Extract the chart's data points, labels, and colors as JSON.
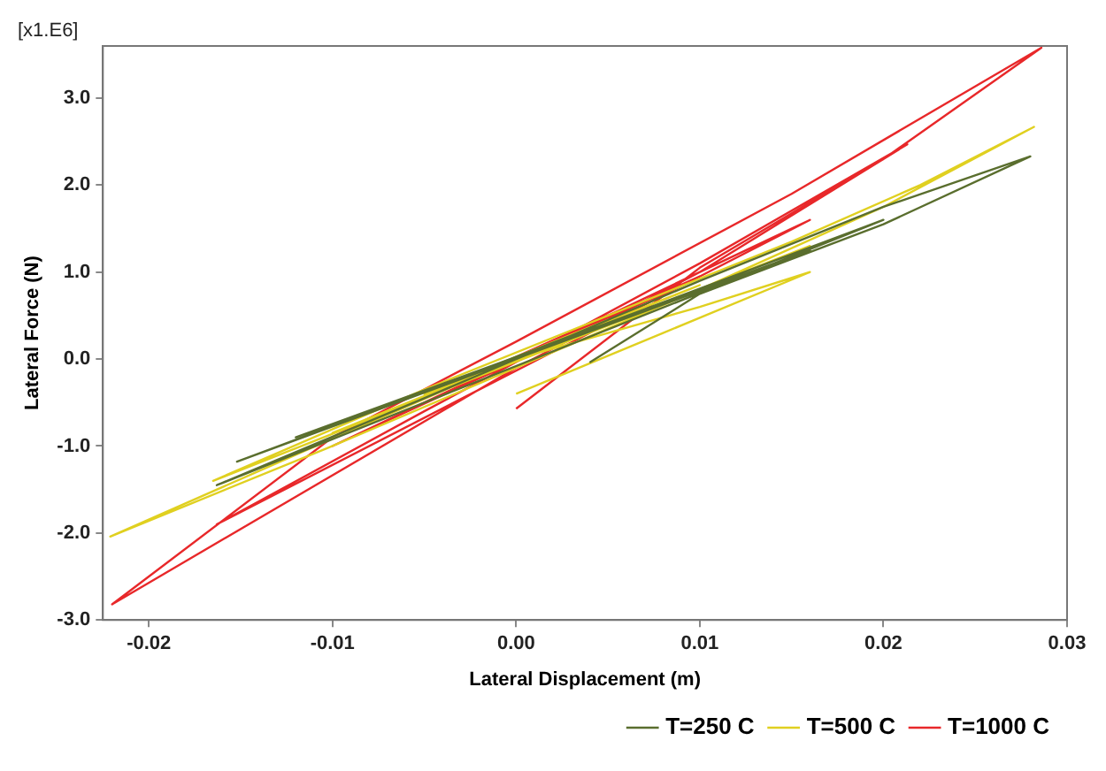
{
  "chart_data": {
    "type": "line",
    "xlabel": "Lateral Displacement (m)",
    "ylabel": "Lateral Force (N)",
    "annotations": [
      "[x1.E6]"
    ],
    "xlim": [
      -0.0225,
      0.03
    ],
    "xticks": [
      {
        "value": -0.02,
        "label": "-0.02"
      },
      {
        "value": -0.01,
        "label": "-0.01"
      },
      {
        "value": 0,
        "label": "0.00"
      },
      {
        "value": 0.01,
        "label": "0.01"
      },
      {
        "value": 0.02,
        "label": "0.02"
      },
      {
        "value": 0.03,
        "label": "0.03"
      }
    ],
    "ylim": [
      -3.0,
      3.6
    ],
    "yticks": [
      {
        "value": -3,
        "label": "-3.0"
      },
      {
        "value": -2,
        "label": "-2.0"
      },
      {
        "value": -1,
        "label": "-1.0"
      },
      {
        "value": 0,
        "label": "0.0"
      },
      {
        "value": 1,
        "label": "1.0"
      },
      {
        "value": 2,
        "label": "2.0"
      },
      {
        "value": 3,
        "label": "3.0"
      }
    ],
    "grid": false,
    "legend": "bottom right",
    "marker": "none",
    "line_style": "solid",
    "series": [
      {
        "name": "T=250 C",
        "color": "#5a6e2e",
        "x": [
          0,
          0.004,
          -0.004,
          0.008,
          -0.008,
          0.012,
          -0.012,
          0.016,
          -0.0152,
          0.02,
          -0.0163,
          -0.005,
          0.01,
          0.02,
          0.028,
          0.02,
          0.01,
          0.004
        ],
        "values": [
          0,
          0.35,
          -0.3,
          0.65,
          -0.6,
          0.95,
          -0.9,
          1.25,
          -1.18,
          1.6,
          -1.45,
          -0.45,
          0.9,
          1.75,
          2.33,
          1.55,
          0.75,
          -0.04
        ]
      },
      {
        "name": "T=500 C",
        "color": "#e0d020",
        "x": [
          0,
          0.005,
          -0.005,
          0.01,
          -0.01,
          0.016,
          -0.0165,
          -0.005,
          0.015,
          0.022,
          0.0282,
          0.02,
          0.01,
          0,
          -0.01,
          -0.0221,
          -0.012,
          0,
          0.01,
          0.016,
          0.008,
          0
        ],
        "values": [
          0,
          0.45,
          -0.4,
          0.85,
          -0.85,
          1.3,
          -1.4,
          -0.35,
          1.35,
          2.0,
          2.67,
          1.75,
          0.8,
          -0.1,
          -1.0,
          -2.04,
          -1.1,
          0,
          0.6,
          1.0,
          0.3,
          -0.4
        ]
      },
      {
        "name": "T=1000 C",
        "color": "#e8282a",
        "x": [
          0,
          0.005,
          -0.005,
          0.01,
          -0.01,
          0.016,
          -0.0163,
          -0.005,
          0.01,
          0.0213,
          0.01,
          0,
          -0.022,
          -0.01,
          0,
          0.015,
          0.0286,
          0.02,
          0.01,
          0
        ],
        "values": [
          0,
          0.5,
          -0.45,
          0.95,
          -1.0,
          1.6,
          -1.9,
          -0.6,
          1.1,
          2.47,
          1.0,
          -0.1,
          -2.82,
          -0.9,
          0.2,
          1.9,
          3.58,
          2.3,
          1.05,
          -0.57
        ]
      }
    ]
  }
}
